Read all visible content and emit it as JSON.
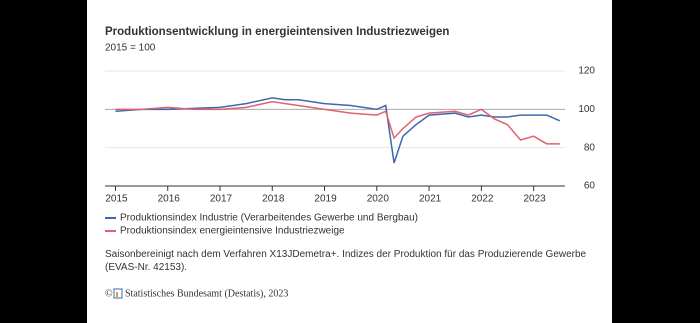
{
  "chart_data": {
    "type": "line",
    "title": "Produktionsentwicklung in energieintensiven Industriezweigen",
    "subtitle": "2015 = 100",
    "x": [
      2015,
      2015.5,
      2016,
      2016.5,
      2017,
      2017.5,
      2018,
      2018.25,
      2018.5,
      2019,
      2019.5,
      2020,
      2020.17,
      2020.33,
      2020.5,
      2020.75,
      2021,
      2021.5,
      2021.75,
      2022,
      2022.25,
      2022.5,
      2022.75,
      2023,
      2023.25,
      2023.5
    ],
    "series": [
      {
        "name": "Produktionsindex Industrie (Verarbeitendes Gewerbe und Bergbau)",
        "color": "#3d67b0",
        "values": [
          99,
          100,
          100,
          100.5,
          101,
          103,
          106,
          105,
          105,
          103,
          102,
          100,
          102,
          72,
          86,
          92,
          97,
          98,
          96,
          97,
          96,
          96,
          97,
          97,
          97,
          94
        ]
      },
      {
        "name": "Produktionsindex energieintensive Industriezweige",
        "color": "#e0626f",
        "values": [
          100,
          100,
          101,
          100,
          100,
          101,
          104,
          103,
          102,
          100,
          98,
          97,
          99,
          85,
          90,
          96,
          98,
          99,
          97,
          100,
          95,
          92,
          84,
          86,
          82,
          82
        ]
      }
    ],
    "xlim": [
      2014.8,
      2023.6
    ],
    "xticks": [
      2015,
      2016,
      2017,
      2018,
      2019,
      2020,
      2021,
      2022,
      2023
    ],
    "ylim": [
      60,
      120
    ],
    "yticks": [
      60,
      80,
      100,
      120
    ],
    "grid": true,
    "note": "Saisonbereinigt nach dem Verfahren X13JDemetra+. Indizes der Produktion für das Produzierende Gewerbe (EVAS-Nr. 42153).",
    "copyright": "©",
    "source": "Statistisches Bundesamt (Destatis), 2023"
  }
}
